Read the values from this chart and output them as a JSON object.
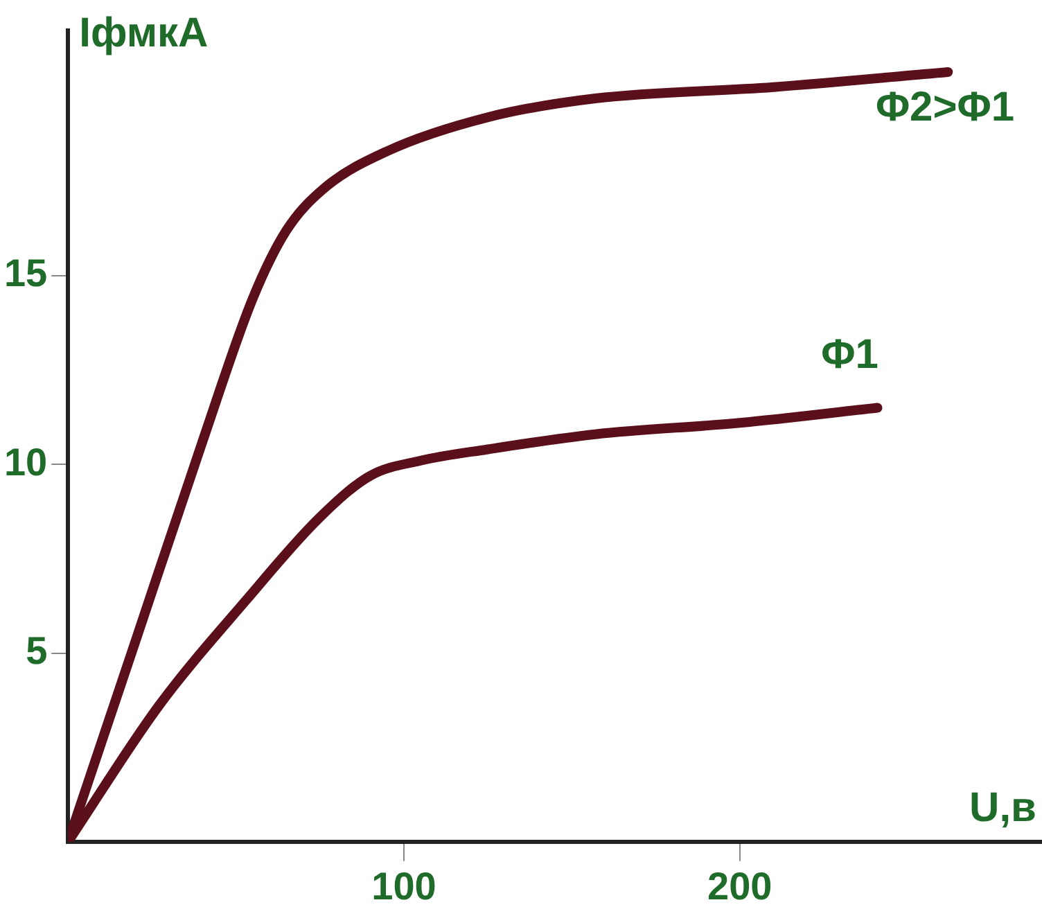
{
  "chart_data": {
    "type": "line",
    "xlabel": "U,в",
    "ylabel": "IфмкА",
    "xlim": [
      0,
      290
    ],
    "ylim": [
      0,
      21.5
    ],
    "xticks": [
      100,
      200
    ],
    "yticks": [
      5,
      10,
      15
    ],
    "grid": false,
    "legend": false,
    "marker": "none",
    "line_style": "solid",
    "series": [
      {
        "name": "Φ2>Φ1",
        "color": "#5a0f1a",
        "x": [
          0,
          20,
          40,
          55,
          65,
          76,
          95,
          125,
          157,
          210,
          262
        ],
        "values": [
          0,
          5.3,
          10.6,
          14.4,
          16.2,
          17.3,
          18.3,
          19.2,
          19.7,
          20.0,
          20.4
        ]
      },
      {
        "name": "Φ1",
        "color": "#5a0f1a",
        "x": [
          0,
          27,
          53,
          75,
          90,
          105,
          125,
          157,
          200,
          241
        ],
        "values": [
          0,
          3.6,
          6.4,
          8.6,
          9.7,
          10.1,
          10.4,
          10.8,
          11.1,
          11.5
        ]
      }
    ]
  }
}
